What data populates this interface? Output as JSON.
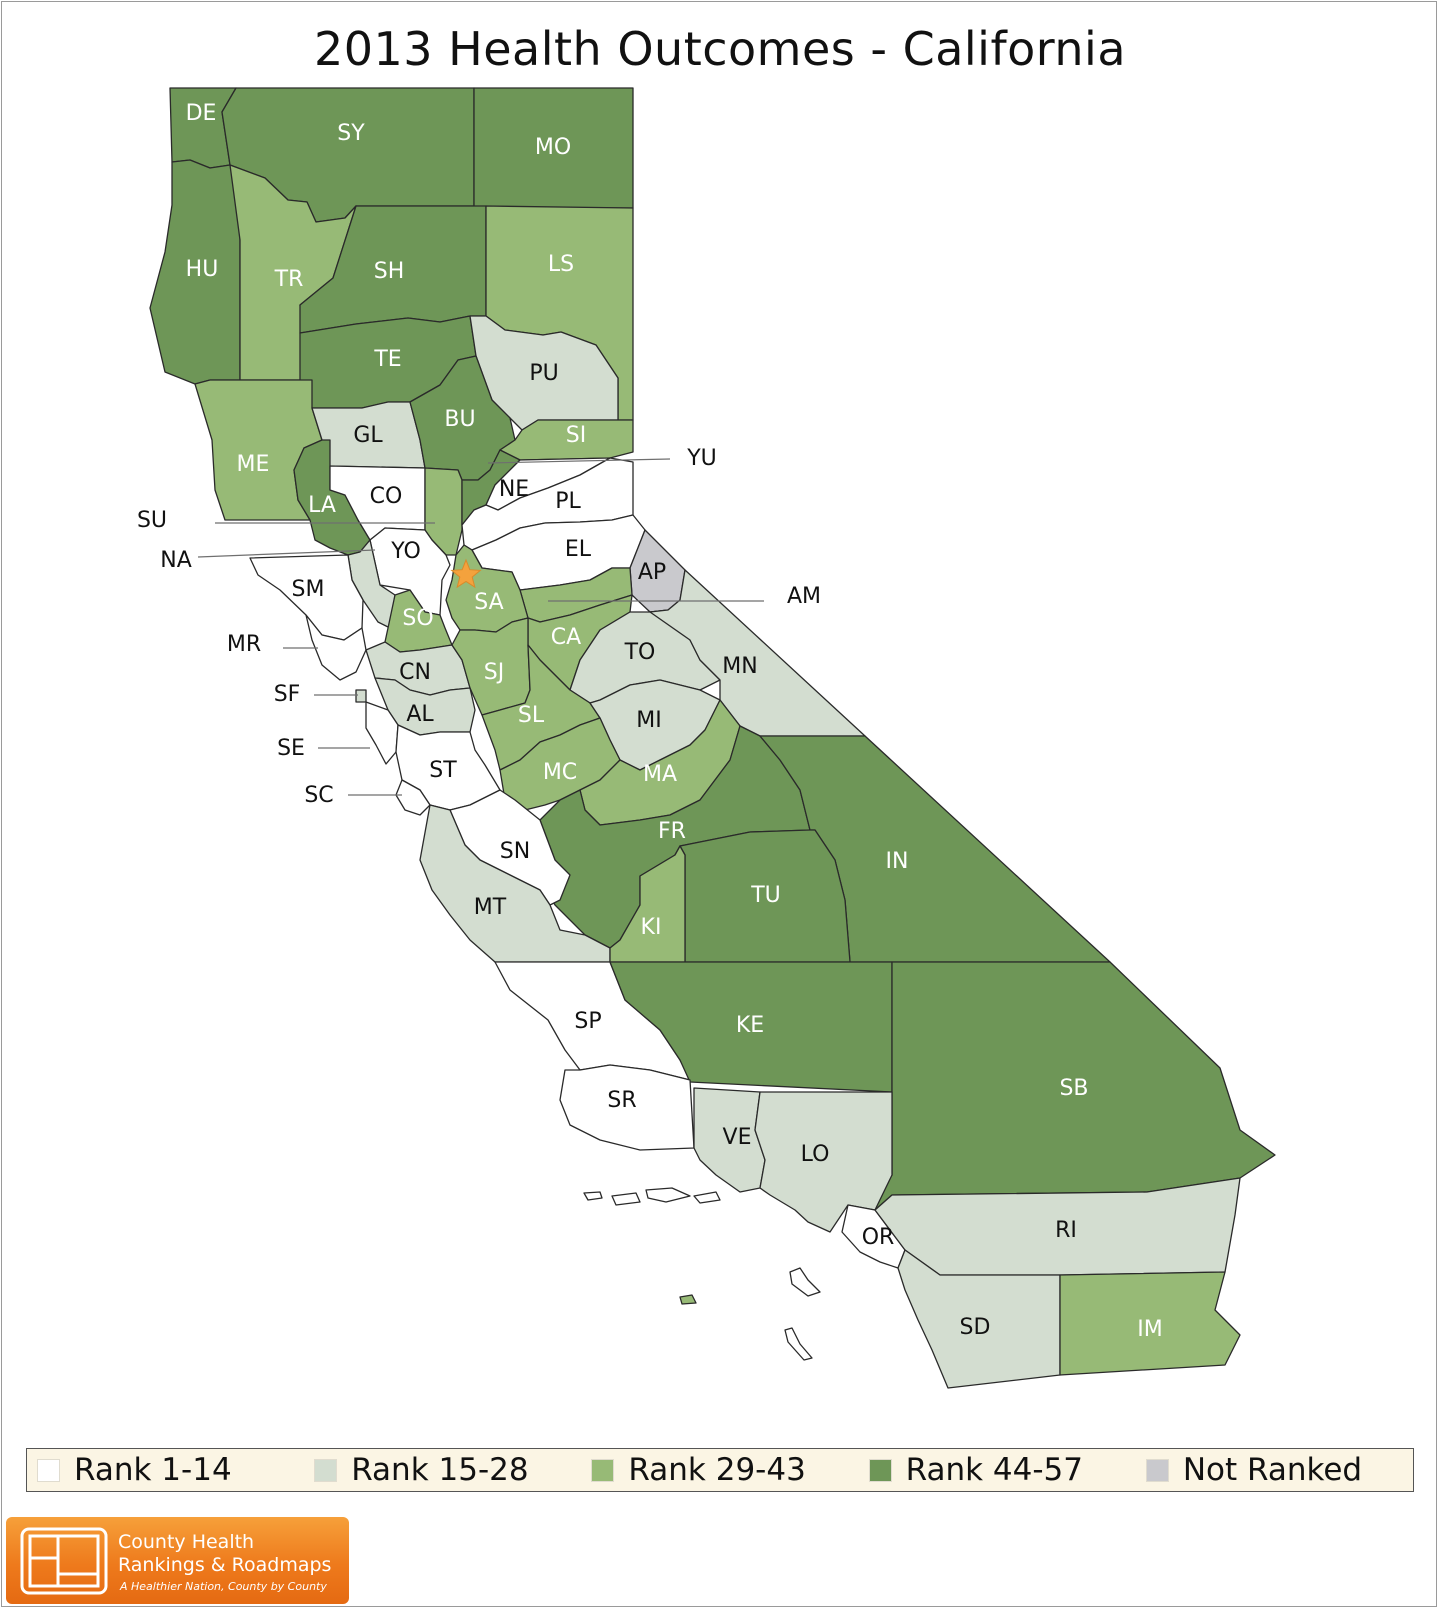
{
  "title": "2013 Health Outcomes - California",
  "colors": {
    "rank_1_14": "#ffffff",
    "rank_15_28": "#d3ddd0",
    "rank_29_43": "#97ba76",
    "rank_44_57": "#6e9657",
    "not_ranked": "#c9c9cd",
    "outline": "#2a2a2a",
    "star": "#f4a23d"
  },
  "legend": [
    {
      "label": "Rank 1-14",
      "color": "#ffffff"
    },
    {
      "label": "Rank 15-28",
      "color": "#d3ddd0"
    },
    {
      "label": "Rank 29-43",
      "color": "#97ba76"
    },
    {
      "label": "Rank 44-57",
      "color": "#6e9657"
    },
    {
      "label": "Not Ranked",
      "color": "#c9c9cd"
    }
  ],
  "counties": [
    {
      "code": "DE",
      "group": "rank_44_57"
    },
    {
      "code": "SY",
      "group": "rank_44_57"
    },
    {
      "code": "MO",
      "group": "rank_44_57"
    },
    {
      "code": "HU",
      "group": "rank_44_57"
    },
    {
      "code": "TR",
      "group": "rank_29_43"
    },
    {
      "code": "SH",
      "group": "rank_44_57"
    },
    {
      "code": "LS",
      "group": "rank_29_43"
    },
    {
      "code": "TE",
      "group": "rank_44_57"
    },
    {
      "code": "PU",
      "group": "rank_15_28"
    },
    {
      "code": "ME",
      "group": "rank_29_43"
    },
    {
      "code": "GL",
      "group": "rank_15_28"
    },
    {
      "code": "BU",
      "group": "rank_44_57"
    },
    {
      "code": "SI",
      "group": "rank_29_43"
    },
    {
      "code": "LA",
      "group": "rank_44_57"
    },
    {
      "code": "CO",
      "group": "rank_1_14"
    },
    {
      "code": "SU",
      "group": "rank_29_43"
    },
    {
      "code": "YU",
      "group": "rank_44_57"
    },
    {
      "code": "NE",
      "group": "rank_1_14"
    },
    {
      "code": "PL",
      "group": "rank_1_14"
    },
    {
      "code": "YO",
      "group": "rank_1_14"
    },
    {
      "code": "NA",
      "group": "rank_15_28"
    },
    {
      "code": "EL",
      "group": "rank_1_14"
    },
    {
      "code": "AP",
      "group": "not_ranked"
    },
    {
      "code": "AM",
      "group": "rank_29_43"
    },
    {
      "code": "SM",
      "group": "rank_1_14"
    },
    {
      "code": "SA",
      "group": "rank_29_43"
    },
    {
      "code": "SO",
      "group": "rank_29_43"
    },
    {
      "code": "CA",
      "group": "rank_29_43"
    },
    {
      "code": "MR",
      "group": "rank_1_14"
    },
    {
      "code": "TO",
      "group": "rank_15_28"
    },
    {
      "code": "MN",
      "group": "rank_15_28"
    },
    {
      "code": "CN",
      "group": "rank_15_28"
    },
    {
      "code": "SJ",
      "group": "rank_29_43"
    },
    {
      "code": "SF",
      "group": "rank_15_28"
    },
    {
      "code": "AL",
      "group": "rank_15_28"
    },
    {
      "code": "SL",
      "group": "rank_29_43"
    },
    {
      "code": "MI",
      "group": "rank_15_28"
    },
    {
      "code": "SE",
      "group": "rank_1_14"
    },
    {
      "code": "MC",
      "group": "rank_29_43"
    },
    {
      "code": "MA",
      "group": "rank_29_43"
    },
    {
      "code": "ST",
      "group": "rank_1_14"
    },
    {
      "code": "SC",
      "group": "rank_1_14"
    },
    {
      "code": "FR",
      "group": "rank_44_57"
    },
    {
      "code": "IN",
      "group": "rank_44_57"
    },
    {
      "code": "SN",
      "group": "rank_1_14"
    },
    {
      "code": "MT",
      "group": "rank_15_28"
    },
    {
      "code": "TU",
      "group": "rank_44_57"
    },
    {
      "code": "KI",
      "group": "rank_29_43"
    },
    {
      "code": "SP",
      "group": "rank_1_14"
    },
    {
      "code": "KE",
      "group": "rank_44_57"
    },
    {
      "code": "SB",
      "group": "rank_44_57"
    },
    {
      "code": "SR",
      "group": "rank_1_14"
    },
    {
      "code": "VE",
      "group": "rank_15_28"
    },
    {
      "code": "LO",
      "group": "rank_15_28"
    },
    {
      "code": "OR",
      "group": "rank_1_14"
    },
    {
      "code": "RI",
      "group": "rank_15_28"
    },
    {
      "code": "SD",
      "group": "rank_15_28"
    },
    {
      "code": "IM",
      "group": "rank_29_43"
    }
  ],
  "capital_marker": {
    "name": "star-icon"
  },
  "logo": {
    "line1": "County Health",
    "line2": "Rankings & Roadmaps",
    "tagline": "A Healthier Nation, County by County"
  }
}
